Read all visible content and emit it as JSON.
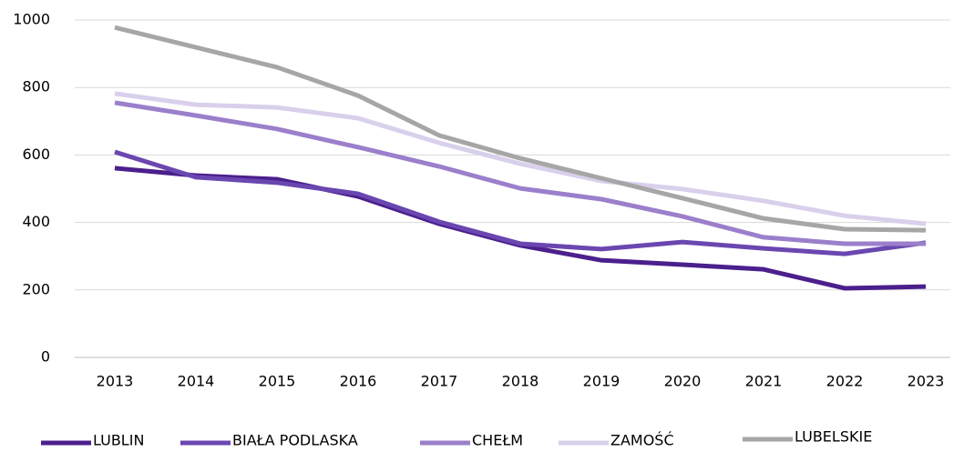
{
  "chart_data": {
    "type": "line",
    "categories": [
      "2013",
      "2014",
      "2015",
      "2016",
      "2017",
      "2018",
      "2019",
      "2020",
      "2021",
      "2022",
      "2023"
    ],
    "series": [
      {
        "name": "LUBLIN",
        "color": "#4b1f8c",
        "values": [
          561,
          539,
          528,
          477,
          396,
          332,
          288,
          275,
          261,
          205,
          210
        ]
      },
      {
        "name": "BIAŁA PODLASKA",
        "color": "#6a47b0",
        "values": [
          609,
          534,
          518,
          485,
          402,
          337,
          321,
          342,
          323,
          307,
          340
        ]
      },
      {
        "name": "CHEŁM",
        "color": "#9b7fcb",
        "values": [
          755,
          717,
          677,
          623,
          566,
          501,
          469,
          418,
          356,
          337,
          337
        ]
      },
      {
        "name": "ZAMOŚĆ",
        "color": "#d9d0ec",
        "values": [
          782,
          749,
          741,
          709,
          636,
          574,
          523,
          499,
          464,
          420,
          396
        ]
      },
      {
        "name": "LUBELSKIE",
        "color": "#a6a6a6",
        "values": [
          978,
          919,
          860,
          776,
          658,
          590,
          531,
          472,
          412,
          380,
          377
        ]
      }
    ],
    "ylim": [
      0,
      1000
    ],
    "yticks": [
      0,
      200,
      400,
      600,
      800,
      1000
    ],
    "grid": true,
    "legend": "bottom"
  }
}
